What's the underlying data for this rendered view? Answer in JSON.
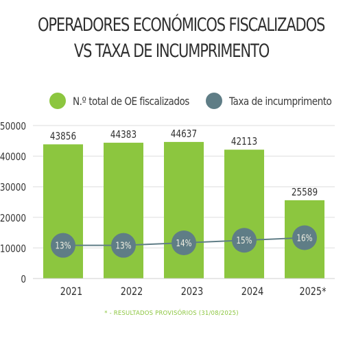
{
  "title_lines": [
    "OPERADORES ECONÓMICOS FISCALIZADOS",
    "VS TAXA DE INCUMPRIMENTO"
  ],
  "footnote": "* - RESULTADOS PROVISÓRIOS (31/08/2025)",
  "colors": {
    "bar": "#8cc63f",
    "line": "#5f7d86",
    "grid": "#dddddd",
    "rate_text": "#f1efe2"
  },
  "chart_data": {
    "type": "bar",
    "title": "OPERADORES ECONÓMICOS FISCALIZADOS VS TAXA DE INCUMPRIMENTO",
    "categories": [
      "2021",
      "2022",
      "2023",
      "2024",
      "2025*"
    ],
    "series": [
      {
        "name": "N.º total de OE fiscalizados",
        "type": "bar",
        "values": [
          43856,
          44383,
          44637,
          42113,
          25589
        ]
      },
      {
        "name": "Taxa de incumprimento",
        "type": "line",
        "values": [
          13,
          13,
          14,
          15,
          16
        ],
        "labels": [
          "13%",
          "13%",
          "14%",
          "15%",
          "16%"
        ]
      }
    ],
    "yticks": [
      0,
      10000,
      20000,
      30000,
      40000,
      50000
    ],
    "ylim": [
      0,
      50000
    ],
    "rate_ylim": [
      0,
      60
    ],
    "grid": true,
    "legend_position": "top"
  }
}
